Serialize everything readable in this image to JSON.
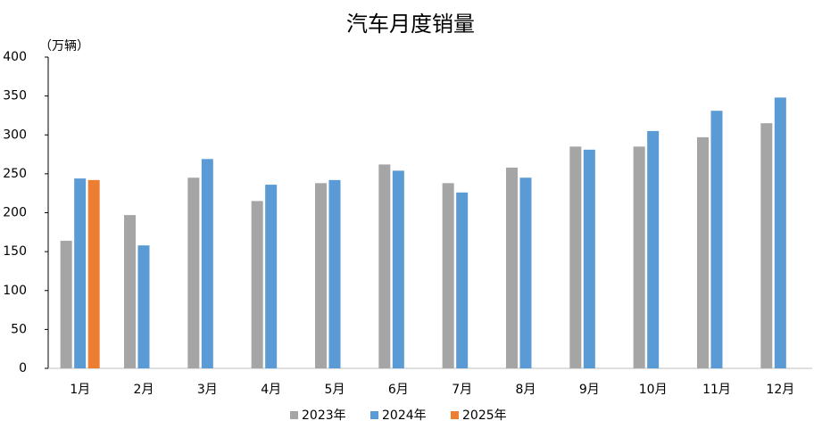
{
  "chart_data": {
    "type": "bar",
    "title": "汽车月度销量",
    "y_unit": "（万辆）",
    "categories": [
      "1月",
      "2月",
      "3月",
      "4月",
      "5月",
      "6月",
      "7月",
      "8月",
      "9月",
      "10月",
      "11月",
      "12月"
    ],
    "series": [
      {
        "name": "2023年",
        "color": "#a5a5a5",
        "values": [
          164,
          197,
          245,
          215,
          238,
          262,
          238,
          258,
          285,
          285,
          297,
          315
        ]
      },
      {
        "name": "2024年",
        "color": "#5b9bd5",
        "values": [
          244,
          158,
          269,
          236,
          242,
          254,
          226,
          245,
          281,
          305,
          331,
          348
        ]
      },
      {
        "name": "2025年",
        "color": "#ed7d31",
        "values": [
          242,
          null,
          null,
          null,
          null,
          null,
          null,
          null,
          null,
          null,
          null,
          null
        ]
      }
    ],
    "ylim": [
      0,
      400
    ],
    "yticks": [
      0,
      50,
      100,
      150,
      200,
      250,
      300,
      350,
      400
    ],
    "grid": false,
    "legend": "bottom"
  }
}
